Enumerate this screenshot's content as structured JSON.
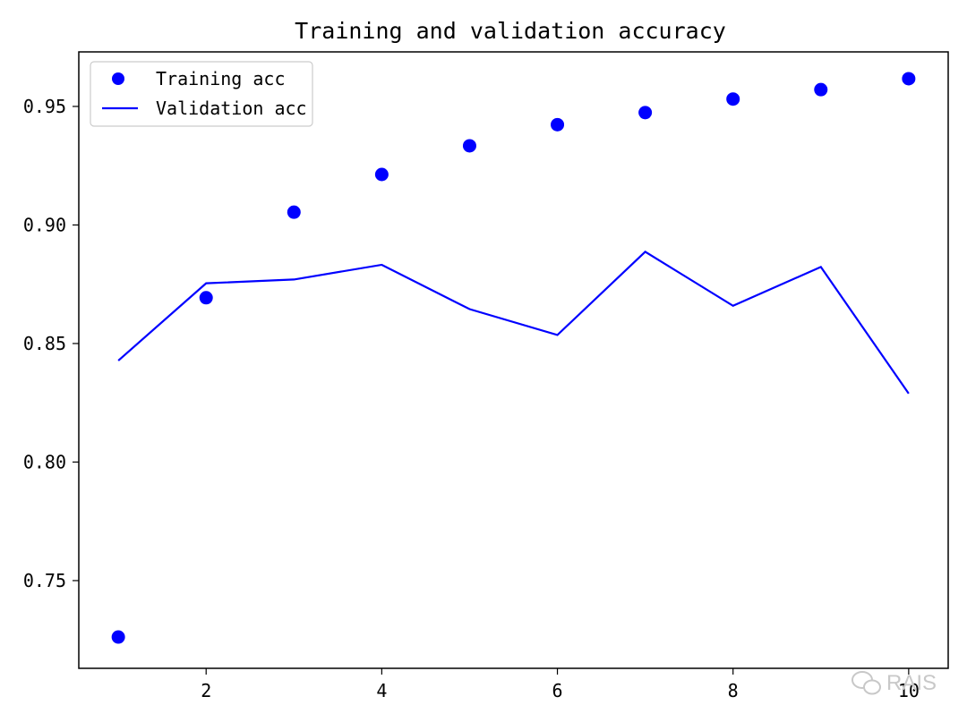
{
  "chart_data": {
    "type": "line",
    "title": "Training and validation accuracy",
    "xlabel": "",
    "ylabel": "",
    "x": [
      1,
      2,
      3,
      4,
      5,
      6,
      7,
      8,
      9,
      10
    ],
    "xlim": [
      0.55,
      10.45
    ],
    "ylim": [
      0.713,
      0.973
    ],
    "xticks": [
      2,
      4,
      6,
      8,
      10
    ],
    "xtick_labels": [
      "2",
      "4",
      "6",
      "8",
      "10"
    ],
    "yticks": [
      0.75,
      0.8,
      0.85,
      0.9,
      0.95
    ],
    "ytick_labels": [
      "0.75",
      "0.80",
      "0.85",
      "0.90",
      "0.95"
    ],
    "grid": false,
    "legend_position": "top-left",
    "series": [
      {
        "name": "Training acc",
        "style": "markers",
        "color": "#0000ff",
        "values": [
          0.7262,
          0.8693,
          0.9054,
          0.9213,
          0.9334,
          0.9423,
          0.9474,
          0.9531,
          0.9571,
          0.9617
        ]
      },
      {
        "name": "Validation acc",
        "style": "line",
        "color": "#0000ff",
        "values": [
          0.8428,
          0.8754,
          0.877,
          0.8832,
          0.8645,
          0.8536,
          0.8887,
          0.8659,
          0.8823,
          0.8289
        ]
      }
    ]
  },
  "watermark": {
    "text": "RAIS",
    "icon": "wechat-icon"
  }
}
